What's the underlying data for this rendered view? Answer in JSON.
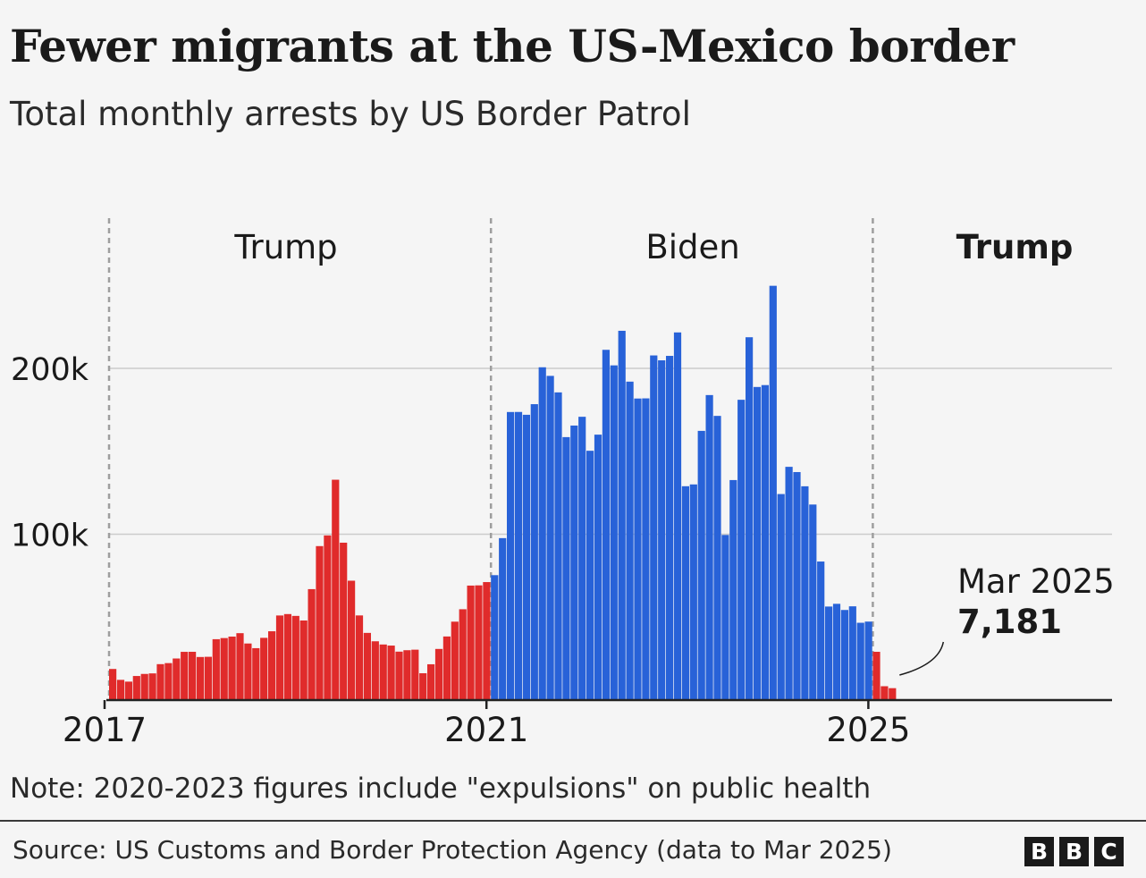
{
  "title": "Fewer migrants at the US-Mexico border",
  "subtitle": "Total monthly arrests by US Border Patrol",
  "note": "Note: 2020-2023 figures include \"expulsions\" on public health",
  "source": "Source: US Customs and Border Protection Agency (data to Mar 2025)",
  "logo": {
    "letters": [
      "B",
      "B",
      "C"
    ]
  },
  "colors": {
    "trump": "#e02b2b",
    "biden": "#2862d8",
    "grid": "#cccccc",
    "axis": "#222222",
    "divider": "#9e9e9e"
  },
  "chart_data": {
    "type": "bar",
    "x_start": "2017-01",
    "x_tick_labels": [
      "2017",
      "2021",
      "2025"
    ],
    "y_ticks": [
      100000,
      200000
    ],
    "y_tick_labels": [
      "100k",
      "200k"
    ],
    "ylim": [
      0,
      260000
    ],
    "grid": true,
    "periods": [
      {
        "label": "Trump",
        "bold": false,
        "start": "2017-01",
        "color": "#e02b2b"
      },
      {
        "label": "Biden",
        "bold": false,
        "start": "2021-01",
        "color": "#2862d8"
      },
      {
        "label": "Trump",
        "bold": true,
        "start": "2025-01",
        "color": "#e02b2b"
      }
    ],
    "series": [
      {
        "values": [
          18755,
          12193,
          11126,
          14519,
          15766,
          16087,
          21659,
          22293,
          25069,
          29086,
          29110,
          25973,
          26097,
          36705,
          37383,
          38278,
          40339,
          34114,
          31299,
          37524,
          41486,
          51004,
          51857,
          50753,
          47986,
          66884,
          92833,
          99273,
          132856,
          94897,
          71978,
          51035,
          40507,
          35446,
          33510,
          32858,
          29208,
          30068,
          30389,
          16182,
          21593,
          30830,
          38347,
          47283,
          54771,
          69032,
          69161,
          71140,
          75316,
          97643,
          173686,
          173718,
          172011,
          178416,
          200658,
          195467,
          185515,
          158548,
          165519,
          170808,
          150317,
          160037,
          211181,
          201800,
          222656,
          192001,
          181817,
          181917,
          207797,
          204847,
          207534,
          221673,
          128936,
          130024,
          162316,
          183903,
          171345,
          99545,
          132652,
          181059,
          218763,
          188778,
          189913,
          249785,
          124220,
          140638,
          137473,
          128900,
          117901,
          83536,
          56399,
          58038,
          54322,
          56530,
          46612,
          47324,
          29101,
          8347,
          7181
        ]
      }
    ],
    "annotation": {
      "label": "Mar 2025",
      "value_label": "7,181"
    }
  }
}
